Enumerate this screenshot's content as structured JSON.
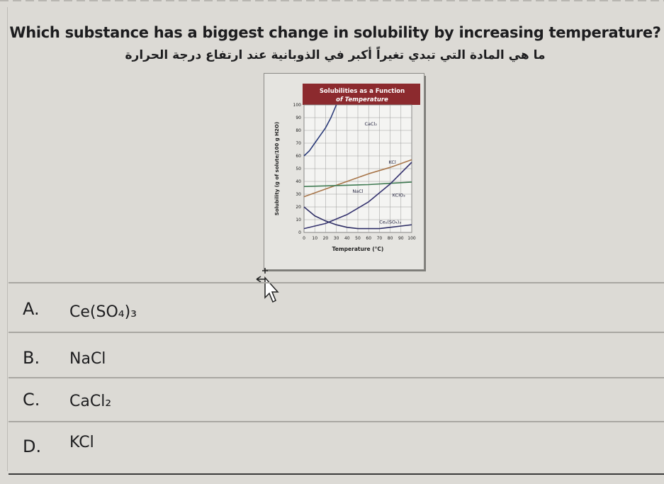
{
  "question": {
    "title": "Which substance has a biggest change in solubility by increasing temperature?",
    "arabic": "ما هي المادة التي تبدي تغيراً أكبر في الذوبانية عند ارتفاع درجة الحرارة"
  },
  "chart_data": {
    "type": "line",
    "title": "Solubilities as a Function of Temperature",
    "xlabel": "Temperature (°C)",
    "ylabel": "Solubility (g of solute/100 g H2O)",
    "xlim": [
      0,
      100
    ],
    "ylim": [
      0,
      100
    ],
    "x_ticks": [
      0,
      10,
      20,
      30,
      40,
      50,
      60,
      70,
      80,
      90,
      100
    ],
    "y_ticks": [
      0,
      10,
      20,
      30,
      40,
      50,
      60,
      70,
      80,
      90,
      100
    ],
    "grid": true,
    "series": [
      {
        "name": "CaCl2",
        "label": "CaCl₂",
        "color": "#2a3a78",
        "x": [
          0,
          5,
          10,
          15,
          20,
          25,
          30
        ],
        "y": [
          60,
          64,
          70,
          76,
          82,
          90,
          100
        ]
      },
      {
        "name": "KCl",
        "label": "KCl",
        "color": "#a8764a",
        "x": [
          0,
          20,
          40,
          60,
          80,
          100
        ],
        "y": [
          28,
          34,
          40,
          46,
          51,
          57
        ]
      },
      {
        "name": "NaCl",
        "label": "NaCl",
        "color": "#3f7a52",
        "x": [
          0,
          20,
          40,
          60,
          80,
          100
        ],
        "y": [
          36,
          36.5,
          37,
          37.5,
          38.5,
          39.5
        ]
      },
      {
        "name": "KClO3",
        "label": "KClO₃",
        "color": "#35336f",
        "x": [
          0,
          20,
          40,
          60,
          80,
          100
        ],
        "y": [
          3,
          7,
          14,
          24,
          38,
          55
        ]
      },
      {
        "name": "Ce2(SO4)3",
        "label": "Ce₂(SO₄)₃",
        "color": "#2f2f66",
        "x": [
          0,
          10,
          20,
          30,
          40,
          50,
          60,
          70,
          80,
          90,
          100
        ],
        "y": [
          20,
          13,
          9,
          6,
          4,
          3,
          3,
          3,
          4,
          5,
          6
        ]
      }
    ]
  },
  "options": [
    {
      "letter": "A.",
      "text": "Ce(SO₄)₃"
    },
    {
      "letter": "B.",
      "text": "NaCl"
    },
    {
      "letter": "C.",
      "text": "CaCl₂"
    },
    {
      "letter": "D.",
      "text": "KCl"
    }
  ]
}
